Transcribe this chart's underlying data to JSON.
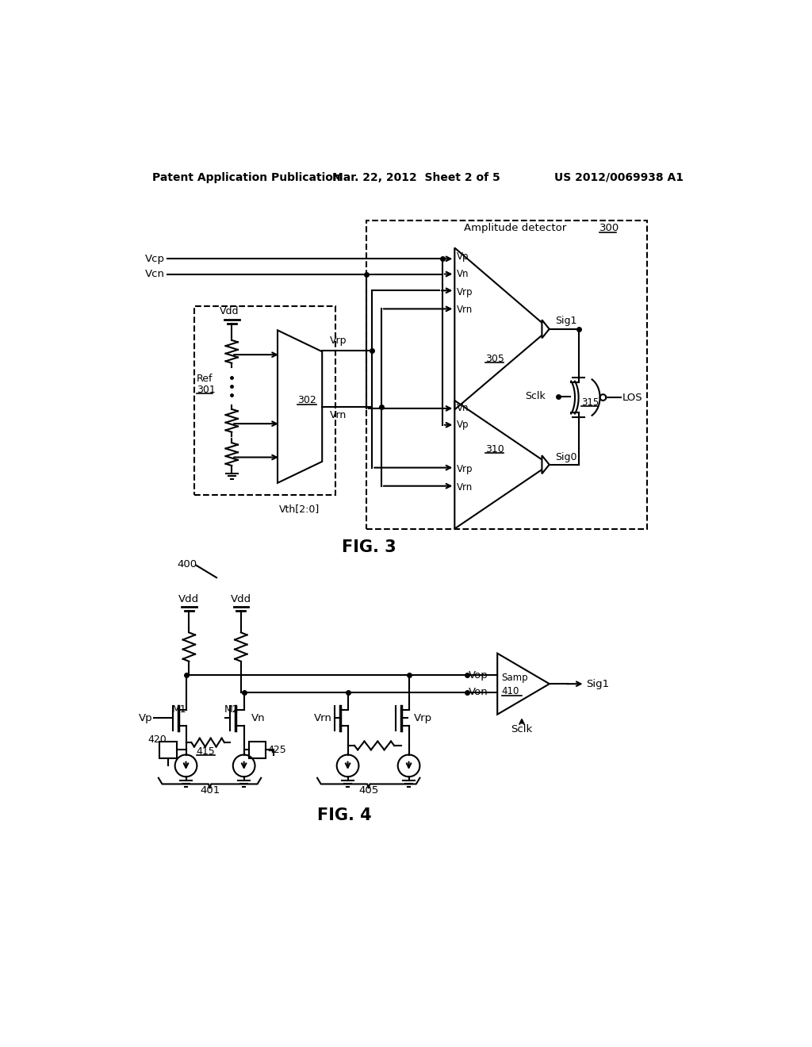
{
  "bg_color": "#ffffff",
  "line_color": "#000000",
  "header_left": "Patent Application Publication",
  "header_mid": "Mar. 22, 2012  Sheet 2 of 5",
  "header_right": "US 2012/0069938 A1",
  "fig3_label": "FIG. 3",
  "fig4_label": "FIG. 4"
}
